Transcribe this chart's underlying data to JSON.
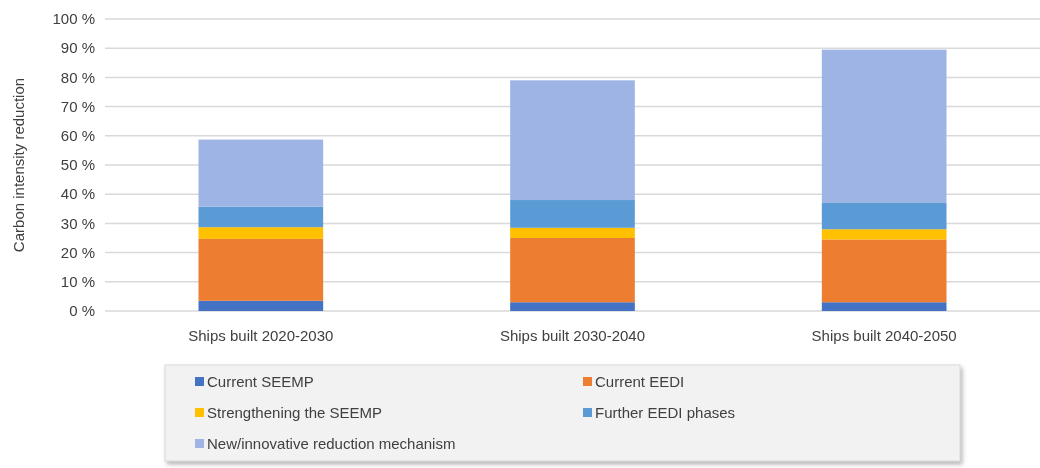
{
  "chart_data": {
    "type": "bar",
    "stacked": true,
    "ylabel": "Carbon intensity reduction",
    "categories": [
      "Ships built 2020-2030",
      "Ships built 2030-2040",
      "Ships built 2040-2050"
    ],
    "series": [
      {
        "name": "Current SEEMP",
        "color": "#4472c4",
        "values": [
          3.5,
          3,
          3
        ]
      },
      {
        "name": "Current EEDI",
        "color": "#ed7d31",
        "values": [
          21.2,
          22,
          21.5
        ]
      },
      {
        "name": "Strengthening the SEEMP",
        "color": "#ffc000",
        "values": [
          4,
          3.5,
          3.5
        ]
      },
      {
        "name": "Further EEDI phases",
        "color": "#5b9bd5",
        "values": [
          7,
          9.5,
          9
        ]
      },
      {
        "name": "New/innovative reduction mechanism",
        "color": "#9db4e4",
        "values": [
          23,
          41,
          52.5
        ]
      }
    ],
    "ylim": [
      0,
      100
    ],
    "yticks": [
      {
        "value": 0,
        "label": "0 %"
      },
      {
        "value": 10,
        "label": "10 %"
      },
      {
        "value": 20,
        "label": "20 %"
      },
      {
        "value": 30,
        "label": "30 %"
      },
      {
        "value": 40,
        "label": "40 %"
      },
      {
        "value": 50,
        "label": "50 %"
      },
      {
        "value": 60,
        "label": "60 %"
      },
      {
        "value": 70,
        "label": "70 %"
      },
      {
        "value": 80,
        "label": "80 %"
      },
      {
        "value": 90,
        "label": "90 %"
      },
      {
        "value": 100,
        "label": "100 %"
      }
    ],
    "grid": "y",
    "legend": "bottom"
  }
}
